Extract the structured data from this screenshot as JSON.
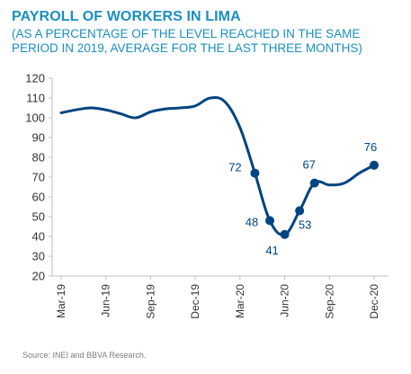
{
  "header": {
    "title": "PAYROLL OF WORKERS IN LIMA",
    "subtitle": "(AS A PERCENTAGE OF THE LEVEL REACHED IN THE SAME PERIOD IN 2019, AVERAGE FOR THE LAST THREE MONTHS)"
  },
  "footer": {
    "source": "Source: INEI and BBVA Research."
  },
  "chart_data": {
    "type": "line",
    "title": "PAYROLL OF WORKERS IN LIMA",
    "xlabel": "",
    "ylabel": "",
    "ylim": [
      20,
      120
    ],
    "yticks": [
      20,
      30,
      40,
      50,
      60,
      70,
      80,
      90,
      100,
      110,
      120
    ],
    "xticks": [
      "Mar-19",
      "Jun-19",
      "Sep-19",
      "Dec-19",
      "Mar-20",
      "Jun-20",
      "Sep-20",
      "Dec-20"
    ],
    "grid": false,
    "line_color": "#004481",
    "series": [
      {
        "x": [
          "Mar-19",
          "Apr-19",
          "May-19",
          "Jun-19",
          "Jul-19",
          "Aug-19",
          "Sep-19",
          "Oct-19",
          "Nov-19",
          "Dec-19",
          "Jan-20",
          "Feb-20",
          "Mar-20",
          "Apr-20",
          "May-20",
          "Jun-20",
          "Jul-20",
          "Aug-20",
          "Sep-20",
          "Oct-20",
          "Nov-20",
          "Dec-20"
        ],
        "values": [
          102.5,
          104,
          105,
          104,
          102,
          100,
          103,
          104.5,
          105,
          106,
          110,
          108,
          95,
          72,
          48,
          41,
          53,
          67,
          66,
          67,
          72,
          76
        ]
      }
    ],
    "data_labels": [
      {
        "x": "Apr-20",
        "value": "72"
      },
      {
        "x": "May-20",
        "value": "48"
      },
      {
        "x": "Jun-20",
        "value": "41"
      },
      {
        "x": "Jul-20",
        "value": "53"
      },
      {
        "x": "Aug-20",
        "value": "67"
      },
      {
        "x": "Dec-20",
        "value": "76"
      }
    ]
  }
}
